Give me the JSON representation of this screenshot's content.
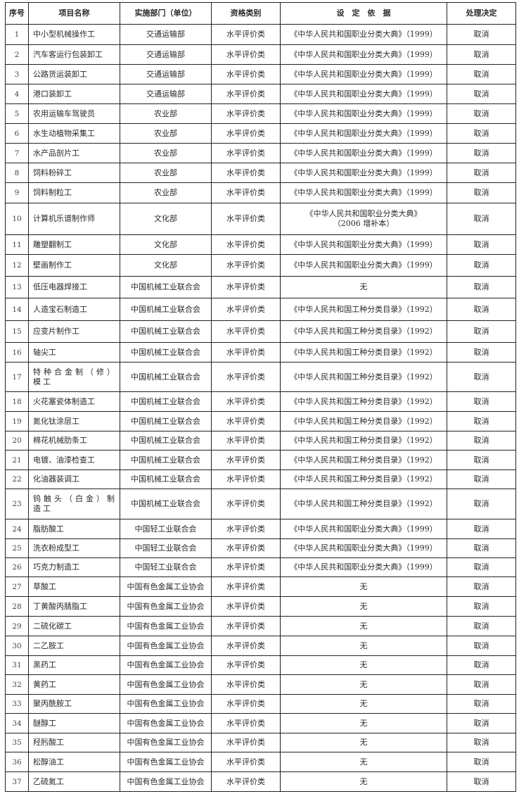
{
  "table": {
    "headers": [
      "序号",
      "项目名称",
      "实施部门（单位）",
      "资格类别",
      "设　定　依　据",
      "处理决定"
    ],
    "rows": [
      [
        "1",
        "中小型机械操作工",
        "交通运输部",
        "水平评价类",
        "《中华人民共和国职业分类大典》（1999）",
        "取消"
      ],
      [
        "2",
        "汽车客运行包装卸工",
        "交通运输部",
        "水平评价类",
        "《中华人民共和国职业分类大典》（1999）",
        "取消"
      ],
      [
        "3",
        "公路货运装卸工",
        "交通运输部",
        "水平评价类",
        "《中华人民共和国职业分类大典》（1999）",
        "取消"
      ],
      [
        "4",
        "港口装卸工",
        "交通运输部",
        "水平评价类",
        "《中华人民共和国职业分类大典》（1999）",
        "取消"
      ],
      [
        "5",
        "农用运输车驾驶员",
        "农业部",
        "水平评价类",
        "《中华人民共和国职业分类大典》（1999）",
        "取消"
      ],
      [
        "6",
        "水生动植物采集工",
        "农业部",
        "水平评价类",
        "《中华人民共和国职业分类大典》（1999）",
        "取消"
      ],
      [
        "7",
        "水产品剖片工",
        "农业部",
        "水平评价类",
        "《中华人民共和国职业分类大典》（1999）",
        "取消"
      ],
      [
        "8",
        "饲料粉碎工",
        "农业部",
        "水平评价类",
        "《中华人民共和国职业分类大典》（1999）",
        "取消"
      ],
      [
        "9",
        "饲料制粒工",
        "农业部",
        "水平评价类",
        "《中华人民共和国职业分类大典》（1999）",
        "取消"
      ],
      [
        "10",
        "计算机乐谱制作师",
        "文化部",
        "水平评价类",
        "《中华人民共和国职业分类大典》\n（2006 增补本）",
        "取消"
      ],
      [
        "11",
        "雕塑翻制工",
        "文化部",
        "水平评价类",
        "《中华人民共和国职业分类大典》（1999）",
        "取消"
      ],
      [
        "12",
        "壁画制作工",
        "文化部",
        "水平评价类",
        "《中华人民共和国职业分类大典》（1999）",
        "取消"
      ],
      [
        "13",
        "低压电器焊接工",
        "中国机械工业联合会",
        "水平评价类",
        "无",
        "取消"
      ],
      [
        "14",
        "人造宝石制造工",
        "中国机械工业联合会",
        "水平评价类",
        "《中华人民共和国工种分类目录》（1992）",
        "取消"
      ],
      [
        "15",
        "应变片制作工",
        "中国机械工业联合会",
        "水平评价类",
        "《中华人民共和国工种分类目录》（1992）",
        "取消"
      ],
      [
        "16",
        "轴尖工",
        "中国机械工业联合会",
        "水平评价类",
        "《中华人民共和国工种分类目录》（1992）",
        "取消"
      ],
      [
        "17",
        "特种合金制（修）模工",
        "中国机械工业联合会",
        "水平评价类",
        "《中华人民共和国工种分类目录》（1992）",
        "取消"
      ],
      [
        "18",
        "火花塞瓷体制造工",
        "中国机械工业联合会",
        "水平评价类",
        "《中华人民共和国工种分类目录》（1992）",
        "取消"
      ],
      [
        "19",
        "氮化钛涂层工",
        "中国机械工业联合会",
        "水平评价类",
        "《中华人民共和国工种分类目录》（1992）",
        "取消"
      ],
      [
        "20",
        "棉花机械肋条工",
        "中国机械工业联合会",
        "水平评价类",
        "《中华人民共和国工种分类目录》（1992）",
        "取消"
      ],
      [
        "21",
        "电镀、油漆检查工",
        "中国机械工业联合会",
        "水平评价类",
        "《中华人民共和国工种分类目录》（1992）",
        "取消"
      ],
      [
        "22",
        "化油器装调工",
        "中国机械工业联合会",
        "水平评价类",
        "《中华人民共和国工种分类目录》（1992）",
        "取消"
      ],
      [
        "23",
        "钨触头（白金）制造工",
        "中国机械工业联合会",
        "水平评价类",
        "《中华人民共和国工种分类目录》（1992）",
        "取消"
      ],
      [
        "24",
        "脂肪酸工",
        "中国轻工业联合会",
        "水平评价类",
        "《中华人民共和国职业分类大典》（1999）",
        "取消"
      ],
      [
        "25",
        "洗衣粉成型工",
        "中国轻工业联合会",
        "水平评价类",
        "《中华人民共和国职业分类大典》（1999）",
        "取消"
      ],
      [
        "26",
        "巧克力制造工",
        "中国轻工业联合会",
        "水平评价类",
        "《中华人民共和国职业分类大典》（1999）",
        "取消"
      ],
      [
        "27",
        "草酸工",
        "中国有色金属工业协会",
        "水平评价类",
        "无",
        "取消"
      ],
      [
        "28",
        "丁黄酸丙腈脂工",
        "中国有色金属工业协会",
        "水平评价类",
        "无",
        "取消"
      ],
      [
        "29",
        "二硫化碳工",
        "中国有色金属工业协会",
        "水平评价类",
        "无",
        "取消"
      ],
      [
        "30",
        "二乙胺工",
        "中国有色金属工业协会",
        "水平评价类",
        "无",
        "取消"
      ],
      [
        "31",
        "黑药工",
        "中国有色金属工业协会",
        "水平评价类",
        "无",
        "取消"
      ],
      [
        "32",
        "黄药工",
        "中国有色金属工业协会",
        "水平评价类",
        "无",
        "取消"
      ],
      [
        "33",
        "聚丙酰胺工",
        "中国有色金属工业协会",
        "水平评价类",
        "无",
        "取消"
      ],
      [
        "34",
        "醚醇工",
        "中国有色金属工业协会",
        "水平评价类",
        "无",
        "取消"
      ],
      [
        "35",
        "羟肟酸工",
        "中国有色金属工业协会",
        "水平评价类",
        "无",
        "取消"
      ],
      [
        "36",
        "松醇油工",
        "中国有色金属工业协会",
        "水平评价类",
        "无",
        "取消"
      ],
      [
        "37",
        "乙硫氮工",
        "中国有色金属工业协会",
        "水平评价类",
        "无",
        "取消"
      ]
    ]
  }
}
